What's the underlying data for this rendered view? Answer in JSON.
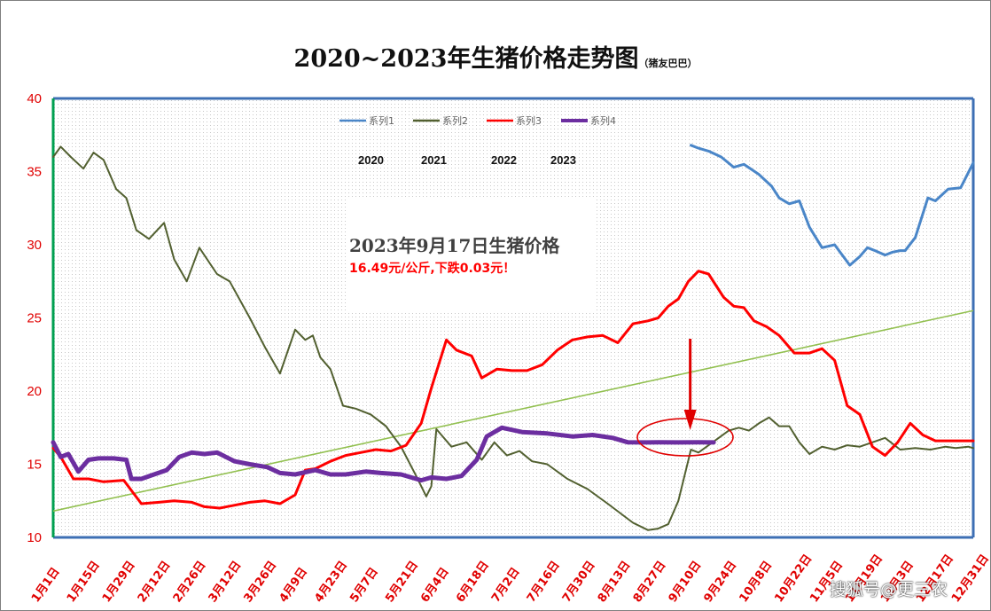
{
  "chart_data": {
    "type": "line",
    "title": "2020~2023年生猪价格走势图",
    "subtitle": "（猪友巴巴）",
    "ylim": [
      10,
      40
    ],
    "yticks": [
      10,
      15,
      20,
      25,
      30,
      35,
      40
    ],
    "x_tick_labels": [
      "1月1日",
      "1月15日",
      "1月29日",
      "2月12日",
      "2月26日",
      "3月12日",
      "3月26日",
      "4月9日",
      "4月23日",
      "5月7日",
      "5月21日",
      "6月4日",
      "6月18日",
      "7月2日",
      "7月16日",
      "7月30日",
      "8月13日",
      "8月27日",
      "9月10日",
      "9月24日",
      "10月8日",
      "10月22日",
      "11月5日",
      "11月19日",
      "12月3日",
      "12月17日",
      "12月31日"
    ],
    "x_range_days": [
      0,
      365
    ],
    "legend": [
      "系列1",
      "系列2",
      "系列3",
      "系列4"
    ],
    "legend_position": "top",
    "year_labels": [
      "2020",
      "2021",
      "2022",
      "2023"
    ],
    "grid": "dotted background",
    "series": [
      {
        "name": "系列1",
        "color": "#4a86c8",
        "width": 3,
        "x": [
          253,
          256,
          260,
          265,
          270,
          274,
          280,
          285,
          288,
          292,
          296,
          300,
          305,
          310,
          316,
          320,
          323,
          326,
          330,
          333,
          336,
          338,
          342,
          347,
          350,
          355,
          360,
          365
        ],
        "y": [
          36.8,
          36.6,
          36.4,
          36.0,
          35.3,
          35.5,
          34.8,
          34.0,
          33.2,
          32.8,
          33.0,
          31.2,
          29.8,
          30.0,
          28.6,
          29.2,
          29.8,
          29.6,
          29.3,
          29.5,
          29.6,
          29.6,
          30.5,
          33.2,
          33.0,
          33.8,
          33.9,
          35.6
        ]
      },
      {
        "name": "系列2",
        "color": "#526030",
        "width": 2,
        "x": [
          0,
          3,
          7,
          12,
          16,
          20,
          25,
          29,
          33,
          38,
          44,
          48,
          53,
          58,
          65,
          70,
          78,
          84,
          90,
          96,
          100,
          103,
          106,
          110,
          115,
          120,
          126,
          132,
          138,
          144,
          148,
          150,
          152,
          158,
          164,
          170,
          175,
          180,
          185,
          190,
          196,
          204,
          212,
          220,
          230,
          236,
          240,
          244,
          248,
          253,
          256,
          260,
          264,
          268,
          272,
          276,
          280,
          284,
          288,
          292,
          296,
          300,
          305,
          310,
          315,
          320,
          325,
          330,
          336,
          342,
          348,
          354,
          358,
          363,
          365
        ],
        "y": [
          36.0,
          36.7,
          36.0,
          35.2,
          36.3,
          35.8,
          33.8,
          33.2,
          31.0,
          30.4,
          31.5,
          29.0,
          27.5,
          29.8,
          28.0,
          27.5,
          25.0,
          23.0,
          21.2,
          24.2,
          23.5,
          23.8,
          22.3,
          21.5,
          19.0,
          18.8,
          18.4,
          17.6,
          16.2,
          14.2,
          12.8,
          13.5,
          17.4,
          16.2,
          16.5,
          15.3,
          16.5,
          15.6,
          15.9,
          15.2,
          15.0,
          14.0,
          13.3,
          12.3,
          11.0,
          10.5,
          10.6,
          10.9,
          12.5,
          16.0,
          15.8,
          16.3,
          16.8,
          17.3,
          17.5,
          17.3,
          17.8,
          18.2,
          17.6,
          17.6,
          16.5,
          15.7,
          16.2,
          16.0,
          16.3,
          16.2,
          16.5,
          16.8,
          16.0,
          16.1,
          16.0,
          16.2,
          16.1,
          16.2,
          16.1
        ]
      },
      {
        "name": "系列3",
        "color": "#ff0000",
        "width": 3,
        "x": [
          0,
          3,
          8,
          14,
          20,
          28,
          35,
          42,
          48,
          55,
          60,
          66,
          72,
          78,
          84,
          90,
          96,
          100,
          104,
          110,
          116,
          122,
          128,
          134,
          140,
          146,
          150,
          156,
          160,
          166,
          170,
          176,
          182,
          188,
          194,
          200,
          206,
          212,
          218,
          224,
          230,
          236,
          240,
          244,
          248,
          252,
          256,
          260,
          266,
          270,
          274,
          278,
          283,
          288,
          294,
          300,
          305,
          310,
          315,
          320,
          325,
          330,
          335,
          340,
          345,
          350,
          353,
          356,
          359,
          362,
          365
        ],
        "y": [
          16.1,
          15.5,
          14.0,
          14.0,
          13.8,
          13.9,
          12.3,
          12.4,
          12.5,
          12.4,
          12.1,
          12.0,
          12.2,
          12.4,
          12.5,
          12.3,
          12.9,
          14.6,
          14.7,
          15.2,
          15.6,
          15.8,
          16.0,
          15.9,
          16.3,
          17.8,
          20.2,
          23.5,
          22.8,
          22.4,
          20.9,
          21.5,
          21.4,
          21.4,
          21.8,
          22.8,
          23.5,
          23.7,
          23.8,
          23.3,
          24.6,
          24.8,
          25.0,
          25.8,
          26.3,
          27.5,
          28.2,
          28.0,
          26.4,
          25.8,
          25.7,
          24.8,
          24.4,
          23.8,
          22.6,
          22.6,
          22.9,
          22.1,
          19.0,
          18.4,
          16.2,
          15.6,
          16.5,
          17.8,
          17.0,
          16.6,
          16.6,
          16.6,
          16.6,
          16.6,
          16.6
        ]
      },
      {
        "name": "系列4",
        "color": "#6c2ea0",
        "width": 5,
        "x": [
          0,
          3,
          6,
          10,
          14,
          18,
          24,
          29,
          31,
          35,
          40,
          45,
          50,
          55,
          60,
          65,
          72,
          78,
          85,
          90,
          96,
          104,
          110,
          116,
          124,
          130,
          138,
          146,
          150,
          156,
          162,
          168,
          172,
          178,
          186,
          196,
          206,
          214,
          222,
          228,
          236,
          240,
          248,
          256,
          262
        ],
        "y": [
          16.5,
          15.5,
          15.7,
          14.5,
          15.3,
          15.4,
          15.4,
          15.3,
          14.0,
          14.0,
          14.3,
          14.6,
          15.5,
          15.8,
          15.7,
          15.8,
          15.2,
          15.0,
          14.8,
          14.4,
          14.3,
          14.6,
          14.3,
          14.3,
          14.5,
          14.4,
          14.3,
          13.9,
          14.1,
          14.0,
          14.2,
          15.3,
          16.9,
          17.5,
          17.2,
          17.1,
          16.9,
          17.0,
          16.8,
          16.5,
          16.49,
          16.5,
          16.49,
          16.5,
          16.49
        ]
      }
    ],
    "trendline": {
      "color": "#92c050",
      "x": [
        0,
        365
      ],
      "y": [
        11.8,
        25.5
      ]
    }
  },
  "annotation": {
    "title": "2023年9月17日生猪价格",
    "text": "16.49元/公斤,下跌0.03元！",
    "arrow_color": "#e00000",
    "circle_color": "#e00000",
    "target_x": 252,
    "target_y": 16.49
  },
  "watermark": "搜狐号@更三农"
}
